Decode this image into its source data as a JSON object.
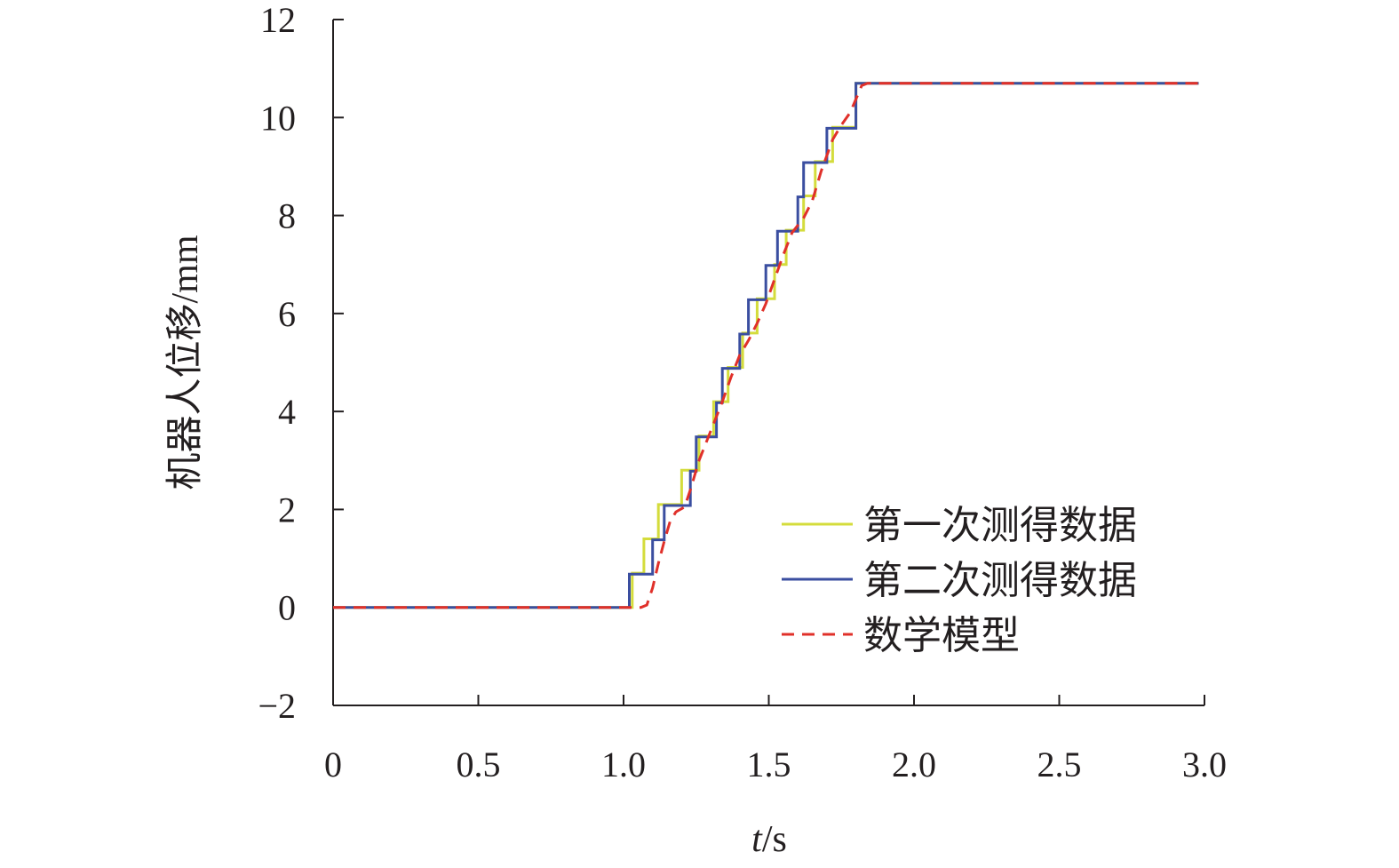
{
  "chart_data": {
    "type": "line",
    "xlabel": "t/s",
    "xlabel_italic_part": "t",
    "xlabel_rest": "/s",
    "ylabel": "机器人位移/mm",
    "xlim": [
      0,
      3.0
    ],
    "ylim": [
      -2,
      12
    ],
    "x_ticks": [
      "0",
      "0.5",
      "1.0",
      "1.5",
      "2.0",
      "2.5",
      "3.0"
    ],
    "x_tick_values": [
      0,
      0.5,
      1.0,
      1.5,
      2.0,
      2.5,
      3.0
    ],
    "y_ticks": [
      "−2",
      "0",
      "2",
      "4",
      "6",
      "8",
      "10",
      "12"
    ],
    "y_tick_values": [
      -2,
      0,
      2,
      4,
      6,
      8,
      10,
      12
    ],
    "grid": false,
    "legend_position": "lower-right",
    "series": [
      {
        "name": "第一次测得数据",
        "color": "#d4dc3c",
        "style": "solid",
        "points": [
          [
            0,
            0
          ],
          [
            1.03,
            0
          ],
          [
            1.03,
            0.7
          ],
          [
            1.07,
            0.7
          ],
          [
            1.07,
            1.4
          ],
          [
            1.12,
            1.4
          ],
          [
            1.12,
            2.1
          ],
          [
            1.2,
            2.1
          ],
          [
            1.2,
            2.8
          ],
          [
            1.26,
            2.8
          ],
          [
            1.26,
            3.5
          ],
          [
            1.31,
            3.5
          ],
          [
            1.31,
            4.2
          ],
          [
            1.36,
            4.2
          ],
          [
            1.36,
            4.9
          ],
          [
            1.41,
            4.9
          ],
          [
            1.41,
            5.6
          ],
          [
            1.46,
            5.6
          ],
          [
            1.46,
            6.3
          ],
          [
            1.52,
            6.3
          ],
          [
            1.52,
            7.0
          ],
          [
            1.56,
            7.0
          ],
          [
            1.56,
            7.7
          ],
          [
            1.62,
            7.7
          ],
          [
            1.62,
            8.4
          ],
          [
            1.66,
            8.4
          ],
          [
            1.66,
            9.1
          ],
          [
            1.72,
            9.1
          ],
          [
            1.72,
            9.8
          ],
          [
            1.8,
            9.8
          ],
          [
            1.8,
            10.7
          ],
          [
            2.98,
            10.7
          ]
        ]
      },
      {
        "name": "第二次测得数据",
        "color": "#3a4ea0",
        "style": "solid",
        "points": [
          [
            0,
            0
          ],
          [
            1.02,
            0
          ],
          [
            1.02,
            0.68
          ],
          [
            1.1,
            0.68
          ],
          [
            1.1,
            1.38
          ],
          [
            1.14,
            1.38
          ],
          [
            1.14,
            2.08
          ],
          [
            1.23,
            2.08
          ],
          [
            1.23,
            2.78
          ],
          [
            1.25,
            2.78
          ],
          [
            1.25,
            3.48
          ],
          [
            1.32,
            3.48
          ],
          [
            1.32,
            4.18
          ],
          [
            1.34,
            4.18
          ],
          [
            1.34,
            4.88
          ],
          [
            1.4,
            4.88
          ],
          [
            1.4,
            5.58
          ],
          [
            1.43,
            5.58
          ],
          [
            1.43,
            6.28
          ],
          [
            1.49,
            6.28
          ],
          [
            1.49,
            6.98
          ],
          [
            1.53,
            6.98
          ],
          [
            1.53,
            7.68
          ],
          [
            1.6,
            7.68
          ],
          [
            1.6,
            8.38
          ],
          [
            1.62,
            8.38
          ],
          [
            1.62,
            9.08
          ],
          [
            1.7,
            9.08
          ],
          [
            1.7,
            9.78
          ],
          [
            1.8,
            9.78
          ],
          [
            1.8,
            10.7
          ],
          [
            2.98,
            10.7
          ]
        ]
      },
      {
        "name": "数学模型",
        "color": "#e0302a",
        "style": "dashed",
        "points": [
          [
            0,
            0
          ],
          [
            1.06,
            0
          ],
          [
            1.08,
            0.05
          ],
          [
            1.1,
            0.4
          ],
          [
            1.12,
            0.9
          ],
          [
            1.14,
            1.35
          ],
          [
            1.16,
            1.75
          ],
          [
            1.18,
            1.95
          ],
          [
            1.21,
            2.05
          ],
          [
            1.23,
            2.4
          ],
          [
            1.26,
            3.0
          ],
          [
            1.29,
            3.45
          ],
          [
            1.31,
            3.75
          ],
          [
            1.34,
            4.2
          ],
          [
            1.37,
            4.7
          ],
          [
            1.4,
            5.15
          ],
          [
            1.43,
            5.45
          ],
          [
            1.46,
            5.8
          ],
          [
            1.49,
            6.2
          ],
          [
            1.52,
            6.7
          ],
          [
            1.55,
            7.2
          ],
          [
            1.58,
            7.65
          ],
          [
            1.62,
            7.95
          ],
          [
            1.65,
            8.3
          ],
          [
            1.68,
            8.9
          ],
          [
            1.72,
            9.55
          ],
          [
            1.75,
            9.85
          ],
          [
            1.78,
            10.1
          ],
          [
            1.82,
            10.65
          ],
          [
            1.84,
            10.7
          ],
          [
            2.98,
            10.7
          ]
        ]
      }
    ]
  }
}
